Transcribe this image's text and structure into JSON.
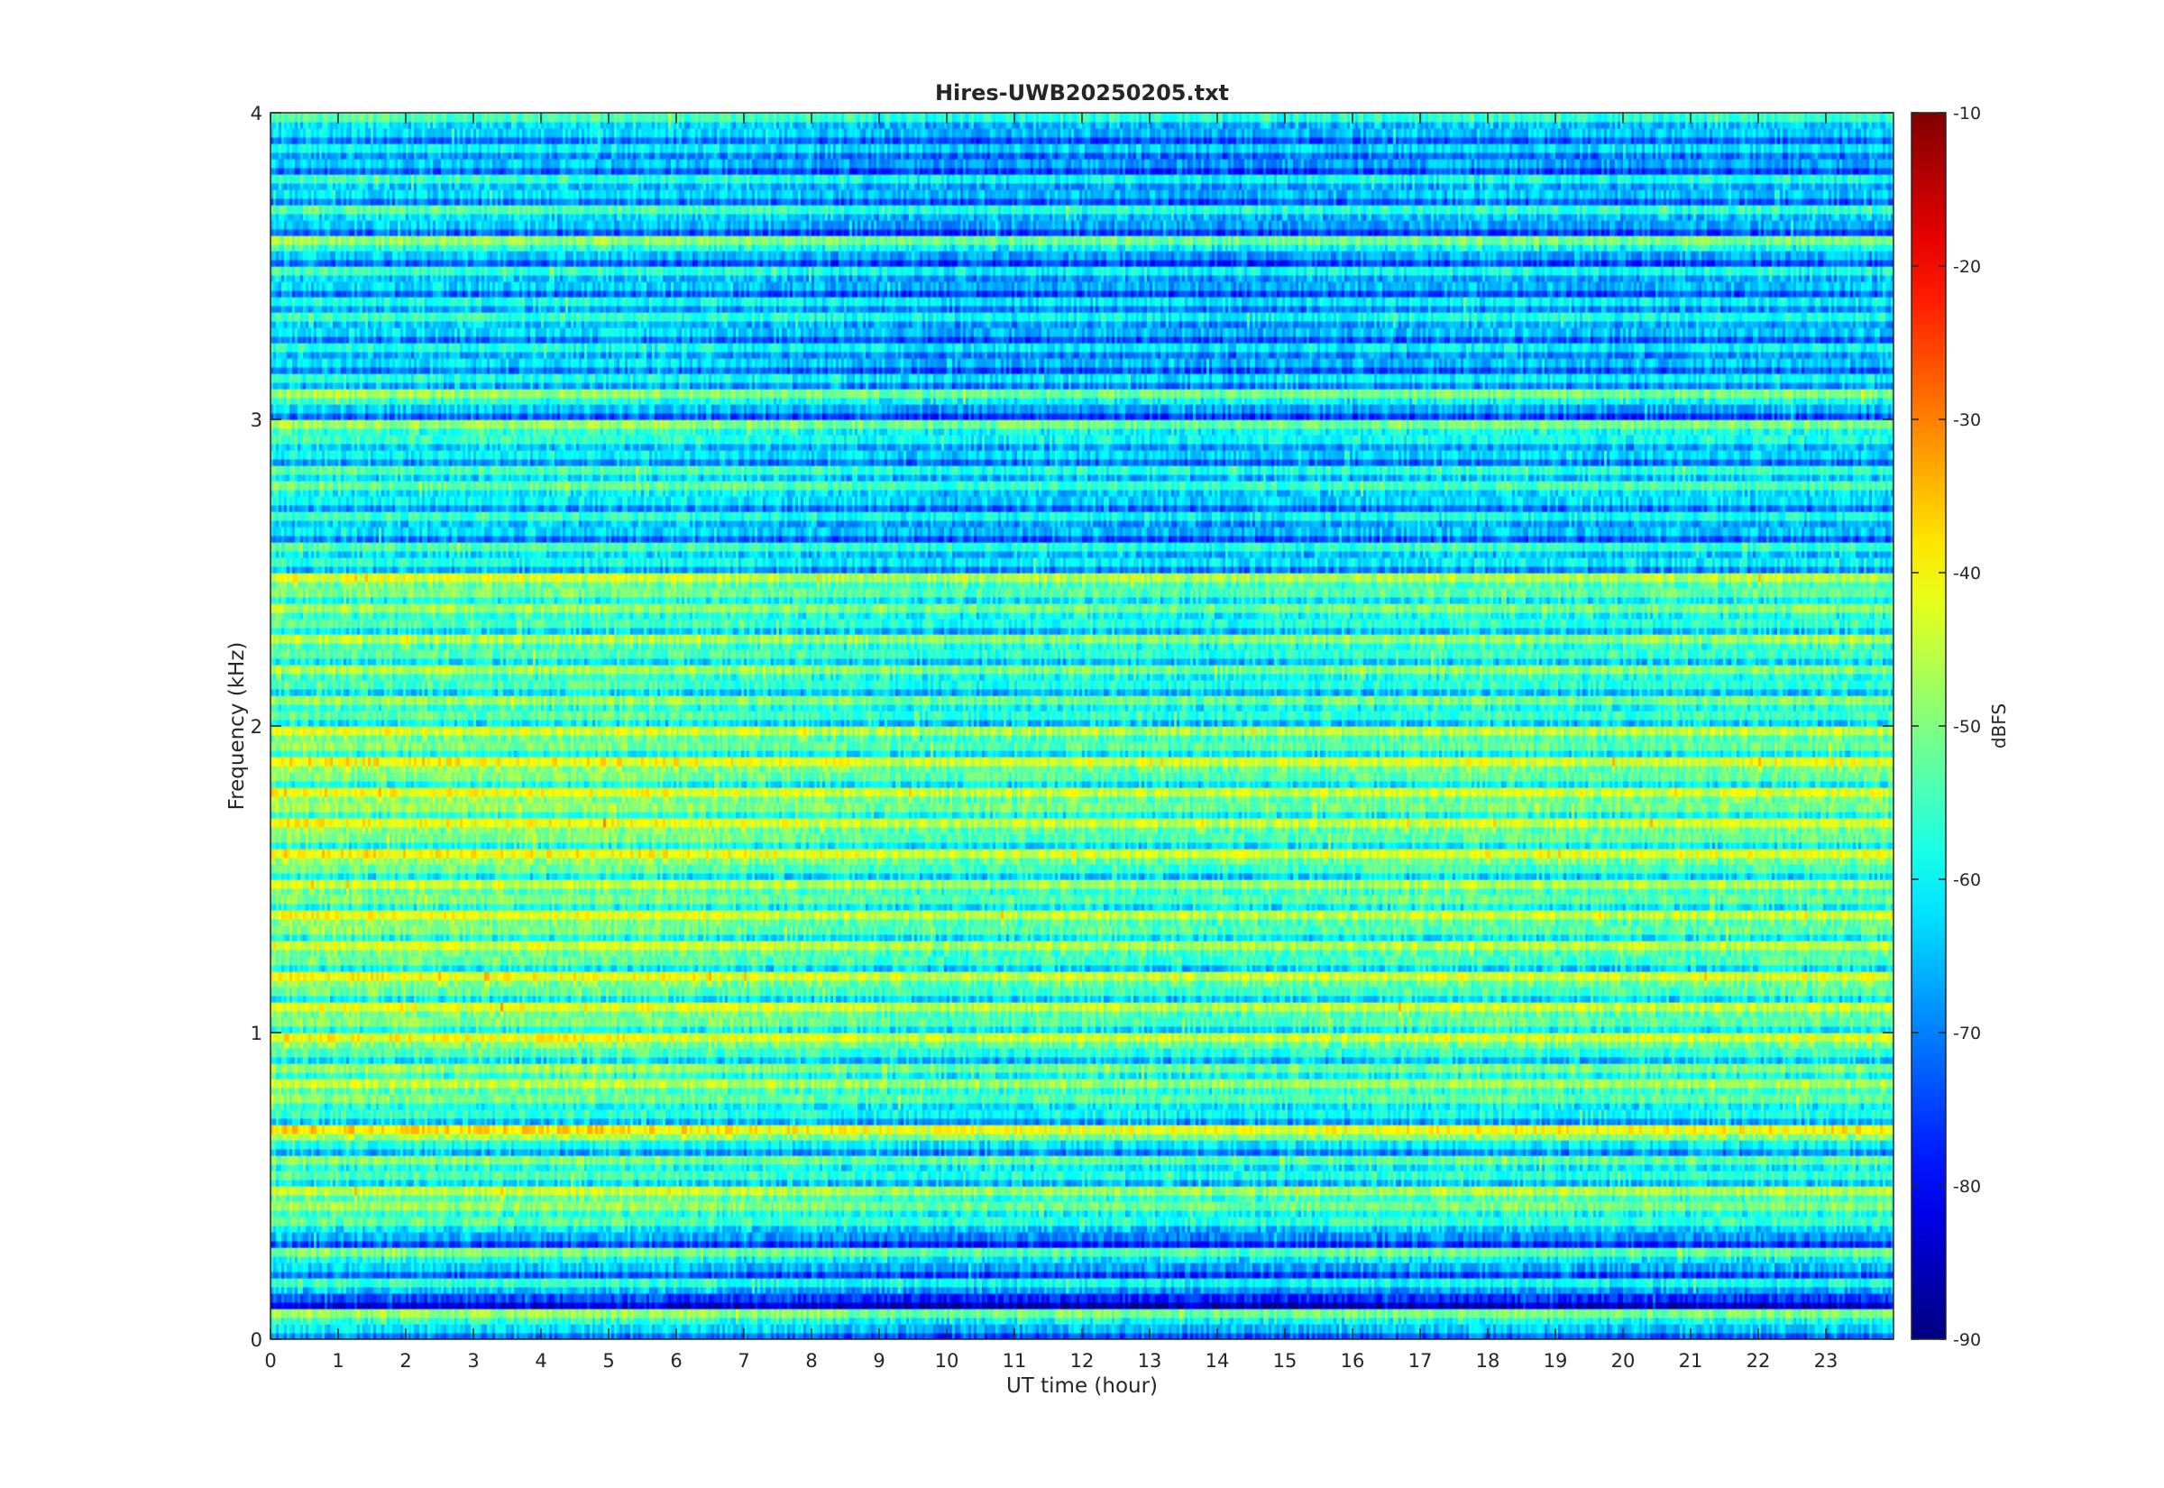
{
  "chart_data": {
    "type": "heatmap",
    "title": "Hires-UWB20250205.txt",
    "xlabel": "UT time (hour)",
    "ylabel": "Frequency (kHz)",
    "xlim": [
      0,
      24
    ],
    "ylim": [
      0,
      4
    ],
    "x_ticks": [
      "0",
      "1",
      "2",
      "3",
      "4",
      "5",
      "6",
      "7",
      "8",
      "9",
      "10",
      "11",
      "12",
      "13",
      "14",
      "15",
      "16",
      "17",
      "18",
      "19",
      "20",
      "21",
      "22",
      "23"
    ],
    "y_ticks": [
      "0",
      "1",
      "2",
      "3",
      "4"
    ],
    "colorbar": {
      "label": "dBFS",
      "range": [
        -90,
        -10
      ],
      "ticks": [
        "-90",
        "-80",
        "-70",
        "-60",
        "-50",
        "-40",
        "-30",
        "-20",
        "-10"
      ],
      "colormap": "jet"
    },
    "grid": false,
    "frequency_profile_khz_dbfs": [
      [
        0.02,
        -64
      ],
      [
        0.05,
        -50
      ],
      [
        0.1,
        -76
      ],
      [
        0.15,
        -58
      ],
      [
        0.2,
        -66
      ],
      [
        0.25,
        -52
      ],
      [
        0.3,
        -68
      ],
      [
        0.35,
        -55
      ],
      [
        0.4,
        -50
      ],
      [
        0.45,
        -46
      ],
      [
        0.5,
        -56
      ],
      [
        0.55,
        -52
      ],
      [
        0.6,
        -60
      ],
      [
        0.65,
        -40
      ],
      [
        0.7,
        -58
      ],
      [
        0.75,
        -52
      ],
      [
        0.8,
        -47
      ],
      [
        0.85,
        -50
      ],
      [
        0.9,
        -56
      ],
      [
        0.95,
        -43
      ],
      [
        1.0,
        -52
      ],
      [
        1.05,
        -44
      ],
      [
        1.1,
        -54
      ],
      [
        1.15,
        -43
      ],
      [
        1.2,
        -54
      ],
      [
        1.25,
        -45
      ],
      [
        1.3,
        -52
      ],
      [
        1.35,
        -44
      ],
      [
        1.4,
        -52
      ],
      [
        1.45,
        -46
      ],
      [
        1.5,
        -54
      ],
      [
        1.55,
        -42
      ],
      [
        1.6,
        -52
      ],
      [
        1.65,
        -43
      ],
      [
        1.7,
        -50
      ],
      [
        1.75,
        -43
      ],
      [
        1.8,
        -52
      ],
      [
        1.85,
        -42
      ],
      [
        1.9,
        -52
      ],
      [
        1.95,
        -45
      ],
      [
        2.0,
        -55
      ],
      [
        2.05,
        -50
      ],
      [
        2.1,
        -56
      ],
      [
        2.15,
        -49
      ],
      [
        2.2,
        -55
      ],
      [
        2.25,
        -48
      ],
      [
        2.3,
        -56
      ],
      [
        2.35,
        -50
      ],
      [
        2.4,
        -52
      ],
      [
        2.45,
        -45
      ],
      [
        2.5,
        -60
      ],
      [
        2.55,
        -56
      ],
      [
        2.6,
        -64
      ],
      [
        2.65,
        -58
      ],
      [
        2.7,
        -62
      ],
      [
        2.75,
        -54
      ],
      [
        2.8,
        -56
      ],
      [
        2.85,
        -62
      ],
      [
        2.9,
        -58
      ],
      [
        2.95,
        -50
      ],
      [
        3.0,
        -66
      ],
      [
        3.05,
        -50
      ],
      [
        3.1,
        -60
      ],
      [
        3.15,
        -64
      ],
      [
        3.2,
        -60
      ],
      [
        3.25,
        -64
      ],
      [
        3.3,
        -58
      ],
      [
        3.35,
        -60
      ],
      [
        3.4,
        -65
      ],
      [
        3.45,
        -58
      ],
      [
        3.5,
        -66
      ],
      [
        3.55,
        -50
      ],
      [
        3.6,
        -66
      ],
      [
        3.65,
        -56
      ],
      [
        3.7,
        -64
      ],
      [
        3.75,
        -58
      ],
      [
        3.8,
        -66
      ],
      [
        3.85,
        -62
      ],
      [
        3.9,
        -64
      ],
      [
        3.95,
        -56
      ]
    ],
    "time_variation_db": [
      [
        0,
        3
      ],
      [
        3,
        2
      ],
      [
        5,
        2
      ],
      [
        8,
        0
      ],
      [
        10,
        -2
      ],
      [
        12,
        -1
      ],
      [
        14,
        -2
      ],
      [
        16,
        -1
      ],
      [
        18,
        0
      ],
      [
        20,
        -1
      ],
      [
        22,
        0
      ],
      [
        24,
        0
      ]
    ]
  }
}
